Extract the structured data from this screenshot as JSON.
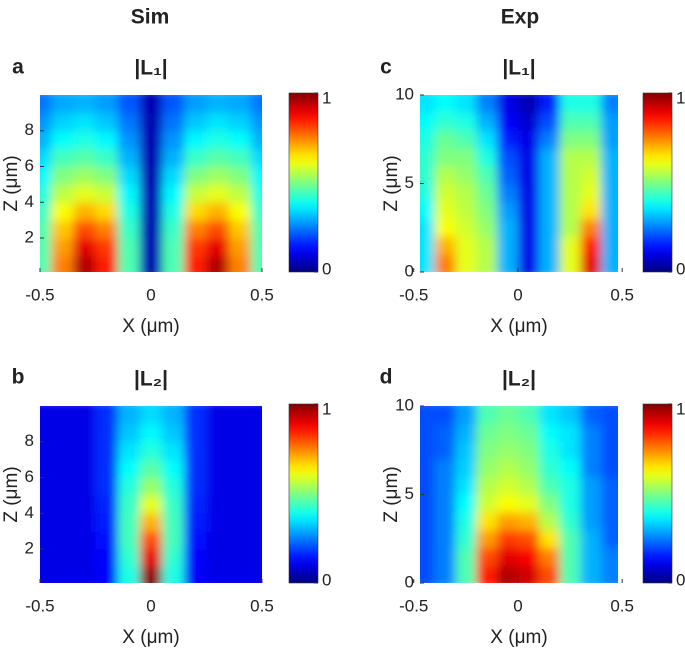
{
  "chart_data": [
    {
      "type": "heatmap",
      "column_title": "Sim",
      "panel_label": "a",
      "title": "|L₁|",
      "xlabel": "X (μm)",
      "ylabel": "Z (μm)",
      "colormap": "jet",
      "x": [
        -0.5,
        -0.4,
        -0.3,
        -0.2,
        -0.1,
        0,
        0.1,
        0.2,
        0.3,
        0.4,
        0.5
      ],
      "y": [
        0.5,
        1.5,
        2.5,
        3.5,
        4.5,
        5.5,
        6.5,
        7.5,
        8.5,
        9.5
      ],
      "z": [
        [
          0.45,
          0.75,
          0.95,
          0.85,
          0.45,
          0.05,
          0.45,
          0.85,
          0.95,
          0.75,
          0.45
        ],
        [
          0.45,
          0.72,
          0.9,
          0.82,
          0.45,
          0.05,
          0.45,
          0.82,
          0.9,
          0.72,
          0.45
        ],
        [
          0.45,
          0.68,
          0.8,
          0.75,
          0.43,
          0.05,
          0.43,
          0.75,
          0.8,
          0.68,
          0.45
        ],
        [
          0.43,
          0.62,
          0.7,
          0.66,
          0.4,
          0.05,
          0.4,
          0.66,
          0.7,
          0.62,
          0.43
        ],
        [
          0.4,
          0.56,
          0.6,
          0.57,
          0.37,
          0.05,
          0.37,
          0.57,
          0.6,
          0.56,
          0.4
        ],
        [
          0.37,
          0.5,
          0.53,
          0.5,
          0.34,
          0.05,
          0.34,
          0.5,
          0.53,
          0.5,
          0.37
        ],
        [
          0.34,
          0.44,
          0.46,
          0.43,
          0.3,
          0.05,
          0.3,
          0.43,
          0.46,
          0.44,
          0.34
        ],
        [
          0.3,
          0.38,
          0.4,
          0.37,
          0.27,
          0.05,
          0.27,
          0.37,
          0.4,
          0.38,
          0.3
        ],
        [
          0.27,
          0.33,
          0.35,
          0.32,
          0.24,
          0.05,
          0.24,
          0.32,
          0.35,
          0.33,
          0.27
        ],
        [
          0.24,
          0.29,
          0.3,
          0.28,
          0.21,
          0.05,
          0.21,
          0.28,
          0.3,
          0.29,
          0.24
        ]
      ],
      "xlim": [
        -0.5,
        0.5
      ],
      "ylim": [
        0.1,
        10
      ],
      "xticks": [
        -0.5,
        0,
        0.5
      ],
      "yticks": [
        2,
        4,
        6,
        8
      ],
      "clim": [
        0,
        1
      ],
      "cticks": [
        0,
        1
      ]
    },
    {
      "type": "heatmap",
      "panel_label": "b",
      "title": "|L₂|",
      "xlabel": "X (μm)",
      "ylabel": "Z (μm)",
      "colormap": "jet",
      "x": [
        -0.5,
        -0.4,
        -0.3,
        -0.2,
        -0.1,
        0,
        0.1,
        0.2,
        0.3,
        0.4,
        0.5
      ],
      "y": [
        0.5,
        1.5,
        2.5,
        3.5,
        4.5,
        5.5,
        6.5,
        7.5,
        8.5,
        9.5
      ],
      "z": [
        [
          0.1,
          0.1,
          0.1,
          0.12,
          0.4,
          0.98,
          0.4,
          0.12,
          0.1,
          0.1,
          0.1
        ],
        [
          0.1,
          0.1,
          0.1,
          0.13,
          0.42,
          0.9,
          0.42,
          0.13,
          0.1,
          0.1,
          0.1
        ],
        [
          0.1,
          0.1,
          0.1,
          0.14,
          0.44,
          0.8,
          0.44,
          0.14,
          0.1,
          0.1,
          0.1
        ],
        [
          0.1,
          0.1,
          0.1,
          0.15,
          0.44,
          0.7,
          0.44,
          0.15,
          0.1,
          0.1,
          0.1
        ],
        [
          0.1,
          0.1,
          0.1,
          0.16,
          0.43,
          0.6,
          0.43,
          0.16,
          0.1,
          0.1,
          0.1
        ],
        [
          0.1,
          0.1,
          0.1,
          0.17,
          0.41,
          0.52,
          0.41,
          0.17,
          0.1,
          0.1,
          0.1
        ],
        [
          0.1,
          0.1,
          0.1,
          0.17,
          0.38,
          0.46,
          0.38,
          0.17,
          0.1,
          0.1,
          0.1
        ],
        [
          0.1,
          0.1,
          0.1,
          0.17,
          0.35,
          0.41,
          0.35,
          0.17,
          0.1,
          0.1,
          0.1
        ],
        [
          0.1,
          0.1,
          0.1,
          0.17,
          0.32,
          0.37,
          0.32,
          0.17,
          0.1,
          0.1,
          0.1
        ],
        [
          0.1,
          0.1,
          0.1,
          0.17,
          0.3,
          0.34,
          0.3,
          0.17,
          0.1,
          0.1,
          0.1
        ]
      ],
      "xlim": [
        -0.5,
        0.5
      ],
      "ylim": [
        0.1,
        10
      ],
      "xticks": [
        -0.5,
        0,
        0.5
      ],
      "yticks": [
        2,
        4,
        6,
        8
      ],
      "clim": [
        0,
        1
      ],
      "cticks": [
        0,
        1
      ]
    },
    {
      "type": "heatmap",
      "column_title": "Exp",
      "panel_label": "c",
      "title": "|L₁|",
      "xlabel": "X (μm)",
      "ylabel": "Z (μm)",
      "colormap": "jet",
      "x": [
        -0.45,
        -0.35,
        -0.25,
        -0.15,
        -0.05,
        0.05,
        0.15,
        0.25,
        0.35,
        0.45
      ],
      "y": [
        0.5,
        1.5,
        2.5,
        3.5,
        4.5,
        5.5,
        6.5,
        7.5,
        8.5,
        9.5
      ],
      "z": [
        [
          0.35,
          0.75,
          0.6,
          0.55,
          0.3,
          0.1,
          0.3,
          0.6,
          0.9,
          0.3
        ],
        [
          0.35,
          0.7,
          0.6,
          0.55,
          0.3,
          0.1,
          0.3,
          0.6,
          0.85,
          0.3
        ],
        [
          0.35,
          0.62,
          0.58,
          0.52,
          0.3,
          0.1,
          0.3,
          0.55,
          0.75,
          0.3
        ],
        [
          0.38,
          0.6,
          0.56,
          0.5,
          0.28,
          0.1,
          0.3,
          0.55,
          0.65,
          0.3
        ],
        [
          0.4,
          0.58,
          0.55,
          0.48,
          0.25,
          0.1,
          0.3,
          0.55,
          0.6,
          0.3
        ],
        [
          0.42,
          0.55,
          0.52,
          0.45,
          0.22,
          0.1,
          0.3,
          0.55,
          0.58,
          0.3
        ],
        [
          0.42,
          0.5,
          0.5,
          0.4,
          0.2,
          0.1,
          0.3,
          0.55,
          0.55,
          0.3
        ],
        [
          0.4,
          0.48,
          0.45,
          0.35,
          0.15,
          0.1,
          0.25,
          0.5,
          0.5,
          0.28
        ],
        [
          0.38,
          0.42,
          0.4,
          0.3,
          0.12,
          0.08,
          0.2,
          0.45,
          0.45,
          0.28
        ],
        [
          0.35,
          0.38,
          0.35,
          0.25,
          0.1,
          0.05,
          0.15,
          0.4,
          0.4,
          0.25
        ]
      ],
      "xlim": [
        -0.47,
        0.48
      ],
      "ylim": [
        0,
        10
      ],
      "xticks": [
        -0.5,
        0,
        0.5
      ],
      "yticks": [
        0,
        5,
        10
      ],
      "clim": [
        0,
        1
      ],
      "cticks": [
        0,
        1
      ]
    },
    {
      "type": "heatmap",
      "panel_label": "d",
      "title": "|L₂|",
      "xlabel": "X (μm)",
      "ylabel": "Z (μm)",
      "colormap": "jet",
      "x": [
        -0.45,
        -0.35,
        -0.25,
        -0.15,
        -0.05,
        0.05,
        0.15,
        0.25,
        0.35,
        0.45
      ],
      "y": [
        0.5,
        1.5,
        2.5,
        3.5,
        4.5,
        5.5,
        6.5,
        7.5,
        8.5,
        9.5
      ],
      "z": [
        [
          0.2,
          0.25,
          0.45,
          0.85,
          0.95,
          0.92,
          0.8,
          0.45,
          0.3,
          0.25
        ],
        [
          0.2,
          0.25,
          0.45,
          0.8,
          0.9,
          0.88,
          0.75,
          0.45,
          0.3,
          0.25
        ],
        [
          0.2,
          0.25,
          0.42,
          0.72,
          0.82,
          0.8,
          0.65,
          0.45,
          0.3,
          0.22
        ],
        [
          0.2,
          0.25,
          0.4,
          0.65,
          0.72,
          0.7,
          0.55,
          0.42,
          0.28,
          0.22
        ],
        [
          0.2,
          0.25,
          0.38,
          0.58,
          0.62,
          0.6,
          0.5,
          0.4,
          0.28,
          0.22
        ],
        [
          0.2,
          0.25,
          0.35,
          0.55,
          0.58,
          0.55,
          0.45,
          0.4,
          0.28,
          0.22
        ],
        [
          0.2,
          0.25,
          0.33,
          0.52,
          0.55,
          0.52,
          0.42,
          0.38,
          0.25,
          0.2
        ],
        [
          0.2,
          0.22,
          0.32,
          0.5,
          0.52,
          0.5,
          0.4,
          0.35,
          0.25,
          0.2
        ],
        [
          0.2,
          0.22,
          0.3,
          0.48,
          0.5,
          0.48,
          0.38,
          0.35,
          0.25,
          0.2
        ],
        [
          0.2,
          0.2,
          0.28,
          0.45,
          0.48,
          0.45,
          0.35,
          0.32,
          0.22,
          0.2
        ]
      ],
      "xlim": [
        -0.47,
        0.48
      ],
      "ylim": [
        0,
        10
      ],
      "xticks": [
        -0.5,
        0,
        0.5
      ],
      "yticks": [
        0,
        5,
        10
      ],
      "clim": [
        0,
        1
      ],
      "cticks": [
        0,
        1
      ]
    }
  ]
}
